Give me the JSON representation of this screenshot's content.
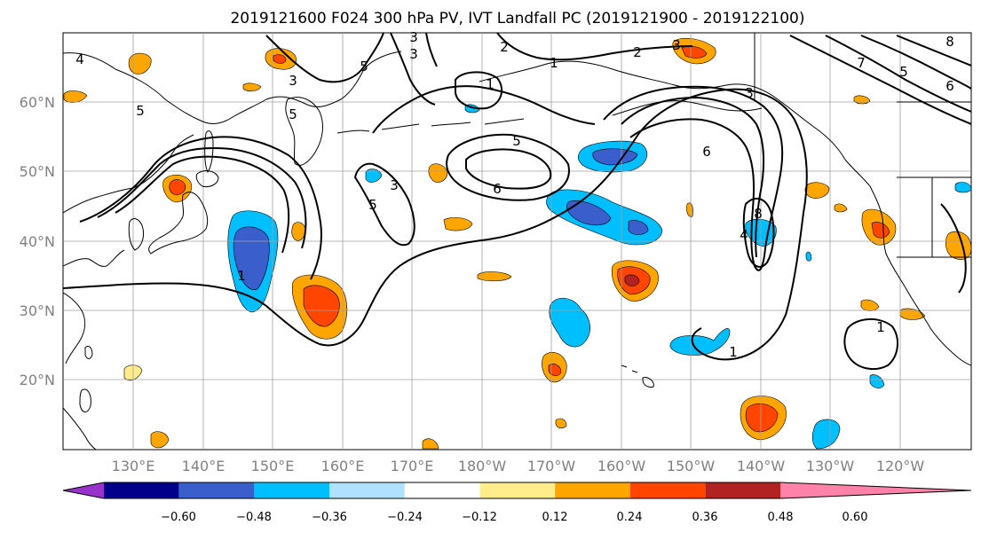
{
  "title": "2019121600 F024 300 hPa PV, IVT Landfall PC (2019121900 - 2019122100)",
  "lat_labels": [
    "60°N",
    "50°N",
    "40°N",
    "30°N",
    "20°N"
  ],
  "lon_labels": [
    "130°E",
    "140°E",
    "150°E",
    "160°E",
    "170°E",
    "180°W",
    "170°W",
    "160°W",
    "150°W",
    "140°W",
    "130°W",
    "120°W"
  ],
  "colorbar": {
    "colors": [
      "#9932cc",
      "#00008b",
      "#3a5fcd",
      "#00bfff",
      "#b0e2ff",
      "#ffffff",
      "#ffec8b",
      "#ffa500",
      "#ff4500",
      "#b22222",
      "#ff82ab"
    ],
    "tick_labels": [
      "−0.60",
      "−0.48",
      "−0.36",
      "−0.24",
      "−0.12",
      "0.12",
      "0.24",
      "0.36",
      "0.48",
      "0.60"
    ]
  },
  "contour_labels": [
    "5",
    "3",
    "5",
    "3",
    "2",
    "3",
    "1",
    "5",
    "6",
    "3",
    "5",
    "1",
    "3",
    "2",
    "6",
    "8",
    "4",
    "1",
    "1",
    "1",
    "5",
    "3",
    "7",
    "8",
    "6",
    "5",
    "4"
  ],
  "colors": {
    "grid": "#a0a0a0",
    "coast": "#000000",
    "contour": "#000000"
  }
}
